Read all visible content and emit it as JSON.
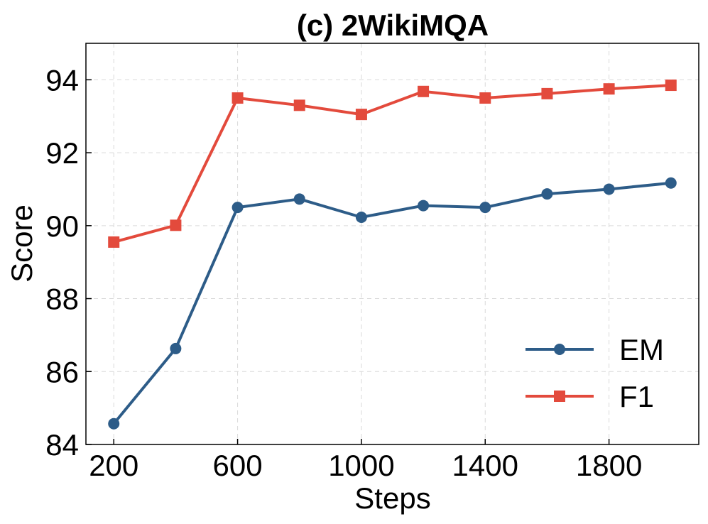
{
  "chart_data": {
    "type": "line",
    "title": "(c) 2WikiMQA",
    "xlabel": "Steps",
    "ylabel": "Score",
    "x": [
      200,
      400,
      600,
      800,
      1000,
      1200,
      1400,
      1600,
      1800,
      2000
    ],
    "xticks": [
      200,
      600,
      1000,
      1400,
      1800
    ],
    "yticks": [
      84,
      86,
      88,
      90,
      92,
      94
    ],
    "xlim": [
      110,
      2090
    ],
    "ylim": [
      84,
      95
    ],
    "grid": true,
    "legend_position": "lower-right",
    "series": [
      {
        "name": "EM",
        "color": "#2d5c88",
        "marker": "circle",
        "values": [
          84.57,
          86.63,
          90.5,
          90.73,
          90.23,
          90.55,
          90.5,
          90.87,
          91.0,
          91.17
        ]
      },
      {
        "name": "F1",
        "color": "#e34a3c",
        "marker": "square",
        "values": [
          89.55,
          90.01,
          93.5,
          93.3,
          93.05,
          93.68,
          93.5,
          93.62,
          93.75,
          93.85
        ]
      }
    ]
  }
}
